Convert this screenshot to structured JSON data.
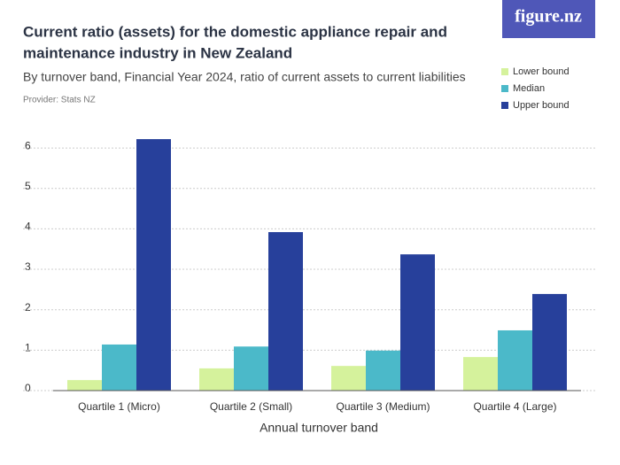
{
  "chart_data": {
    "type": "bar",
    "title_lines": [
      "Current ratio (assets) for the domestic appliance repair and",
      "maintenance industry in New Zealand"
    ],
    "subtitle": "By turnover band, Financial Year 2024, ratio of current assets to current liabilities",
    "provider": "Provider: Stats NZ",
    "logo": "figure.nz",
    "x_label": "Annual turnover band",
    "categories": [
      "Quartile 1 (Micro)",
      "Quartile 2 (Small)",
      "Quartile 3 (Medium)",
      "Quartile 4 (Large)"
    ],
    "series": [
      {
        "name": "Lower bound",
        "color": "#d5f29c",
        "values": [
          0.26,
          0.55,
          0.61,
          0.83
        ]
      },
      {
        "name": "Median",
        "color": "#4bb9c9",
        "values": [
          1.14,
          1.09,
          0.99,
          1.49
        ]
      },
      {
        "name": "Upper bound",
        "color": "#27409b",
        "values": [
          6.22,
          3.92,
          3.37,
          2.39
        ]
      }
    ],
    "ylim": [
      0,
      6.5
    ],
    "yticks": [
      0,
      1,
      2,
      3,
      4,
      5,
      6
    ],
    "grid": true
  }
}
